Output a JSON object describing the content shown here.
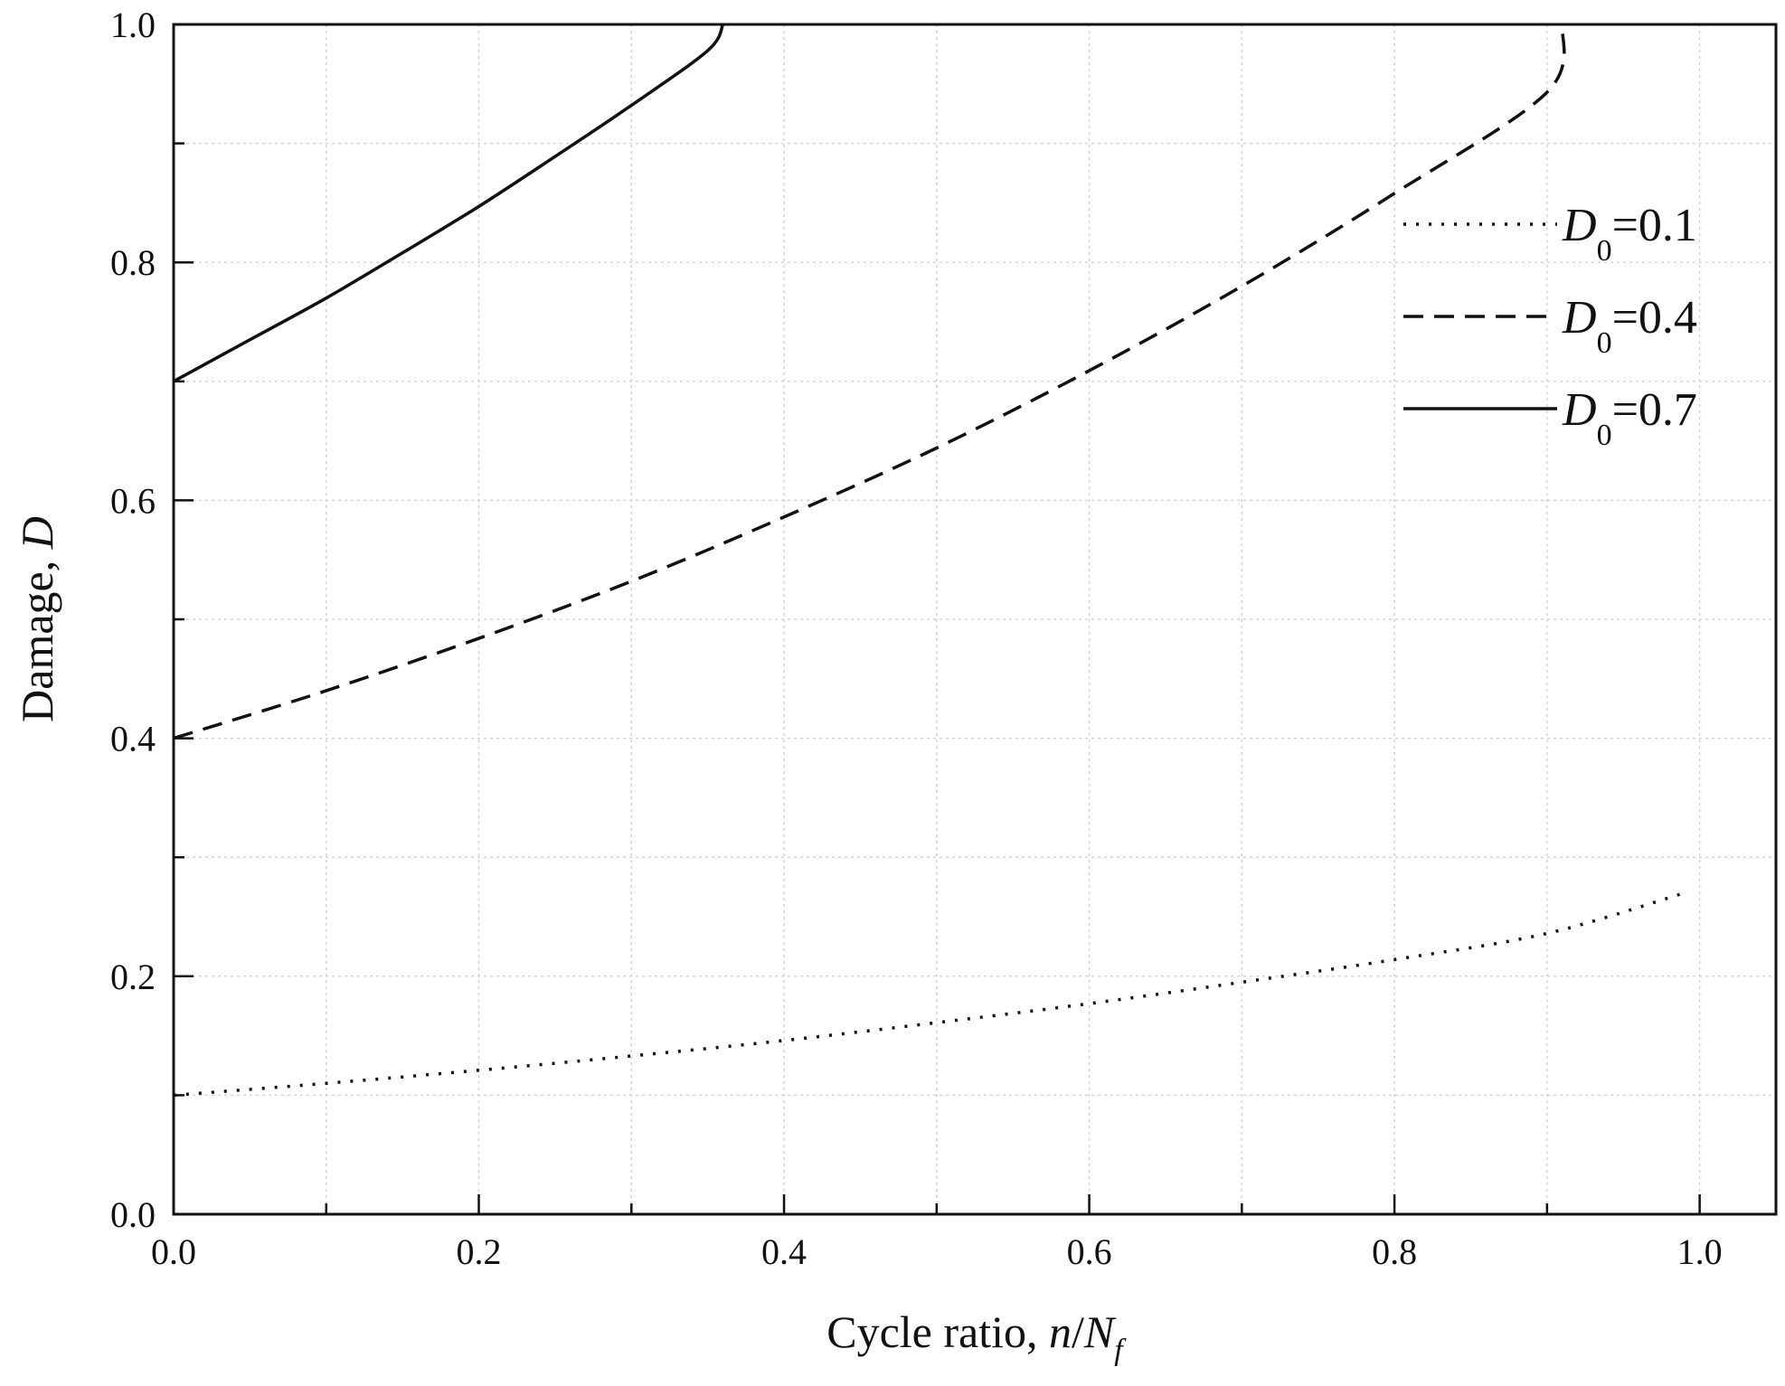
{
  "chart_data": {
    "type": "line",
    "title": "",
    "xlabel_prefix": "Cycle ratio, ",
    "xlabel_n": "n",
    "xlabel_slash": "/",
    "xlabel_N": "N",
    "xlabel_sub": "f",
    "ylabel_prefix": "Damage, ",
    "ylabel_var": "D",
    "xlim": [
      0.0,
      1.05
    ],
    "ylim": [
      0.0,
      1.0
    ],
    "x_ticks": [
      0.0,
      0.2,
      0.4,
      0.6,
      0.8,
      1.0
    ],
    "x_tick_labels": [
      "0.0",
      "0.2",
      "0.4",
      "0.6",
      "0.8",
      "1.0"
    ],
    "x_minor_ticks": [
      0.1,
      0.3,
      0.5,
      0.7,
      0.9
    ],
    "y_ticks": [
      0.0,
      0.2,
      0.4,
      0.6,
      0.8,
      1.0
    ],
    "y_tick_labels": [
      "0.0",
      "0.2",
      "0.4",
      "0.6",
      "0.8",
      "1.0"
    ],
    "y_minor_ticks": [
      0.1,
      0.3,
      0.5,
      0.7,
      0.9
    ],
    "grid": true,
    "legend_position": "upper-right",
    "series": [
      {
        "name": "D0=0.1",
        "legend_var": "D",
        "legend_sub": "0",
        "legend_value": "=0.1",
        "style": "dotted",
        "x": [
          0.0,
          0.1,
          0.2,
          0.3,
          0.4,
          0.5,
          0.6,
          0.7,
          0.8,
          0.9,
          0.99
        ],
        "y": [
          0.1,
          0.11,
          0.121,
          0.133,
          0.146,
          0.161,
          0.177,
          0.195,
          0.214,
          0.236,
          0.27
        ]
      },
      {
        "name": "D0=0.4",
        "legend_var": "D",
        "legend_sub": "0",
        "legend_value": "=0.4",
        "style": "dashed",
        "x": [
          0.0,
          0.1,
          0.2,
          0.3,
          0.4,
          0.5,
          0.6,
          0.7,
          0.8,
          0.9,
          0.91
        ],
        "y": [
          0.4,
          0.44,
          0.484,
          0.532,
          0.586,
          0.644,
          0.709,
          0.78,
          0.858,
          0.943,
          1.0
        ]
      },
      {
        "name": "D0=0.7",
        "legend_var": "D",
        "legend_sub": "0",
        "legend_value": "=0.7",
        "style": "solid",
        "x": [
          0.0,
          0.05,
          0.1,
          0.15,
          0.2,
          0.25,
          0.3,
          0.35,
          0.36
        ],
        "y": [
          0.7,
          0.735,
          0.77,
          0.808,
          0.847,
          0.889,
          0.932,
          0.978,
          1.0
        ]
      }
    ]
  }
}
